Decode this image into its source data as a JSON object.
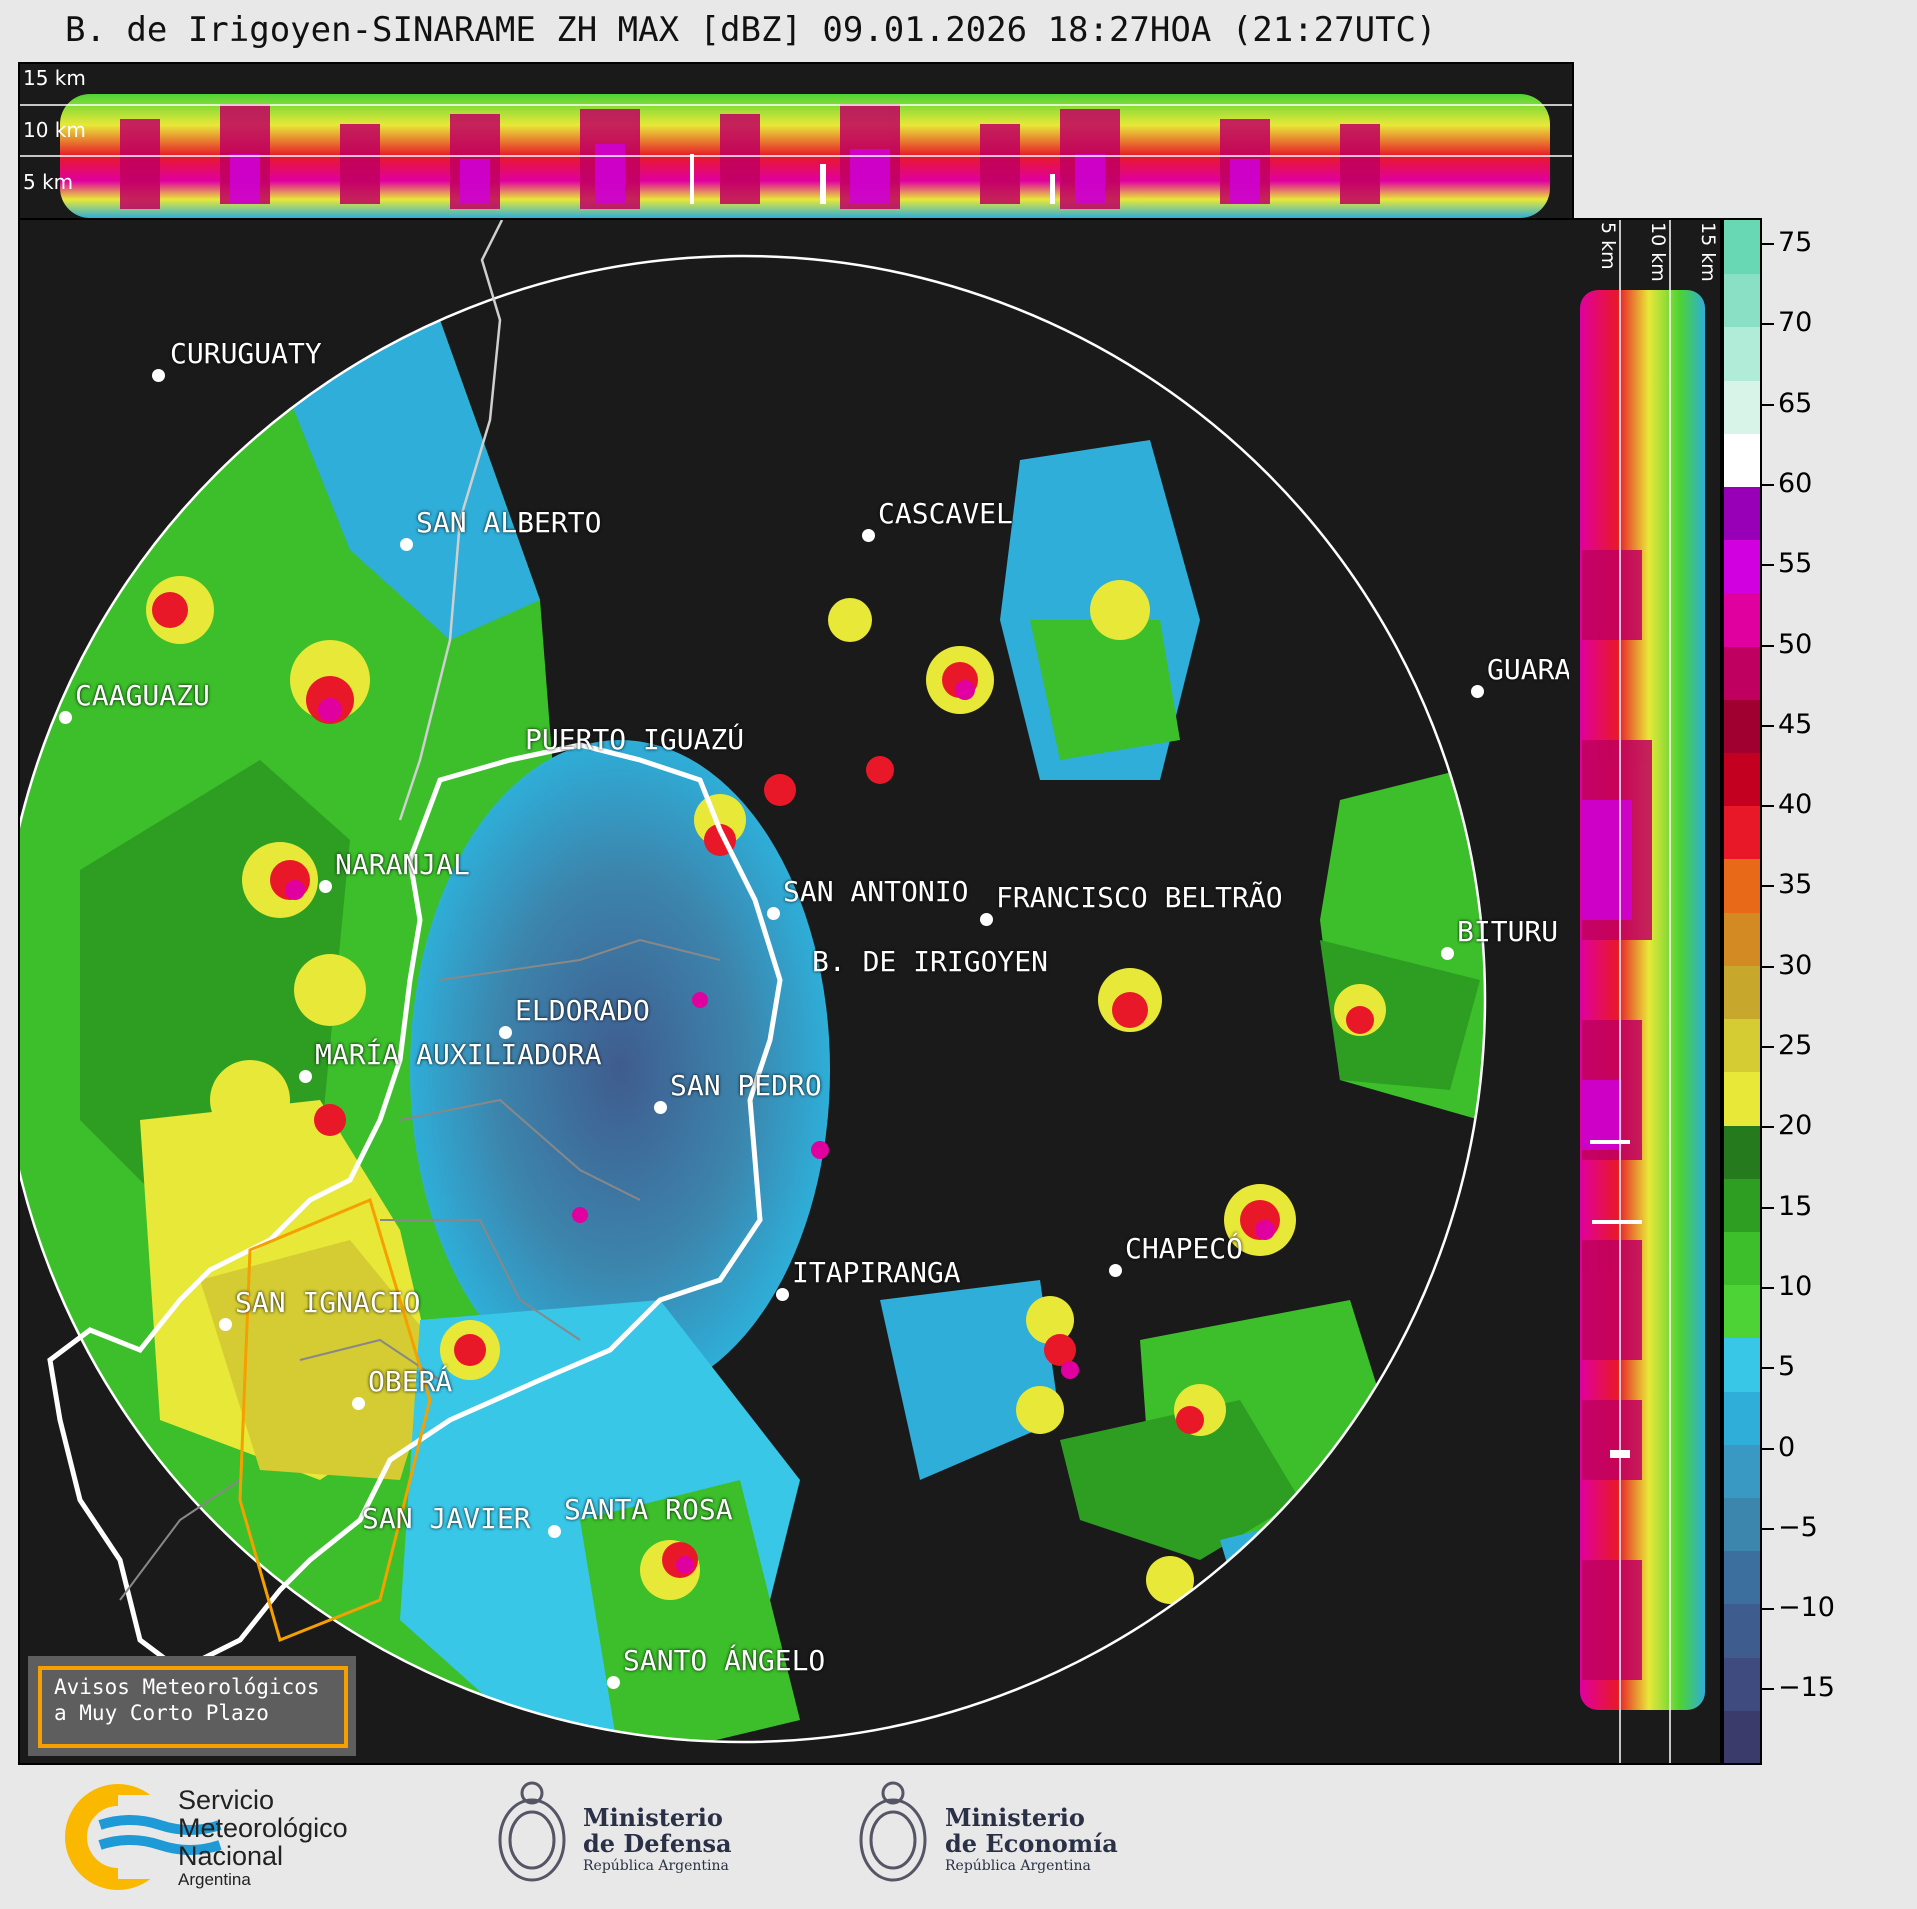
{
  "title": "B. de Irigoyen-SINARAME ZH MAX [dBZ] 09.01.2026 18:27HOA (21:27UTC)",
  "top_panel": {
    "altitude_labels": [
      "15 km",
      "10 km",
      "5 km"
    ]
  },
  "right_panel": {
    "altitude_labels": [
      "5 km",
      "10 km",
      "15 km"
    ]
  },
  "colorbar": {
    "unit": "dBZ",
    "ticks": [
      "75",
      "70",
      "65",
      "60",
      "55",
      "50",
      "45",
      "40",
      "35",
      "30",
      "25",
      "20",
      "15",
      "10",
      "5",
      "0",
      "−5",
      "−10",
      "−15"
    ],
    "colors": [
      "#3b3b6b",
      "#3f4a7e",
      "#3f5c8e",
      "#3d6f9e",
      "#3c85ad",
      "#3a99c2",
      "#2eaed8",
      "#39c7e8",
      "#4dd335",
      "#3cbf2a",
      "#2d9e22",
      "#247a1c",
      "#e8e838",
      "#d4cc32",
      "#c8a82c",
      "#d48a22",
      "#e86a18",
      "#e81828",
      "#c40020",
      "#a00030",
      "#c00060",
      "#e000a0",
      "#d000e0",
      "#9800b8",
      "#ffffff",
      "#d8f4e8",
      "#b0ecd8",
      "#8ae0c4",
      "#68d8b4"
    ]
  },
  "cities": [
    {
      "name": "CURUGUATY"
    },
    {
      "name": "SAN ALBERTO"
    },
    {
      "name": "CASCAVEL"
    },
    {
      "name": "CAAGUAZU"
    },
    {
      "name": "GUARA"
    },
    {
      "name": "PUERTO IGUAZÚ"
    },
    {
      "name": "NARANJAL"
    },
    {
      "name": "SAN ANTONIO"
    },
    {
      "name": "FRANCISCO BELTRÃO"
    },
    {
      "name": "B. DE IRIGOYEN"
    },
    {
      "name": "BITURU"
    },
    {
      "name": "ELDORADO"
    },
    {
      "name": "MARÍA AUXILIADORA"
    },
    {
      "name": "SAN PEDRO"
    },
    {
      "name": "CHAPECÓ"
    },
    {
      "name": "ITAPIRANGA"
    },
    {
      "name": "SAN IGNACIO"
    },
    {
      "name": "OBERÁ"
    },
    {
      "name": "SAN JAVIER"
    },
    {
      "name": "SANTA ROSA"
    },
    {
      "name": "SANTO ÁNGELO"
    }
  ],
  "avisos": {
    "line1": "Avisos Meteorológicos",
    "line2": "a Muy Corto Plazo"
  },
  "footer": {
    "smn": {
      "line1": "Servicio",
      "line2": "Meteorológico",
      "line3": "Nacional",
      "line4": "Argentina"
    },
    "defensa": {
      "line1": "Ministerio",
      "line2": "de Defensa",
      "line3": "República Argentina"
    },
    "economia": {
      "line1": "Ministerio",
      "line2": "de Economía",
      "line3": "República Argentina"
    }
  },
  "palette": {
    "background": "#1a1a1a",
    "page": "#e8e8e8",
    "accent": "#f5a000",
    "smn_blue": "#1e9ad6",
    "smn_yellow": "#fbb800"
  }
}
